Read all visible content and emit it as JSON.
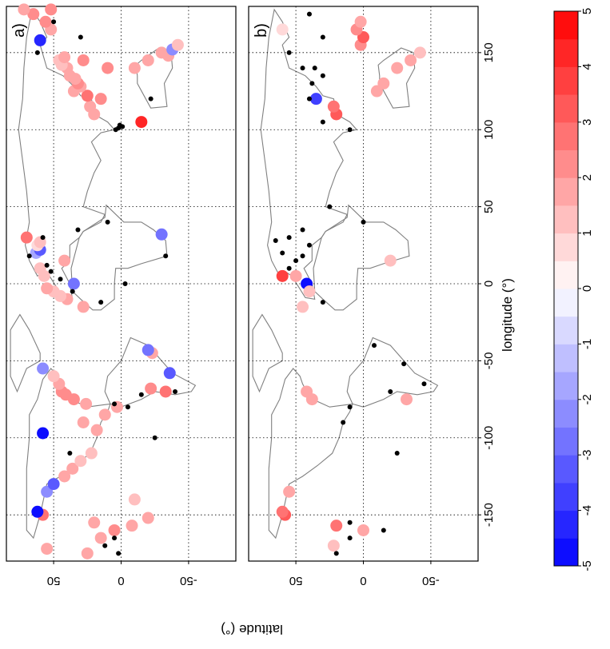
{
  "figure": {
    "xlabel": "longitude (°)",
    "ylabel": "latitude (°)",
    "x_ticks": [
      -150,
      -100,
      -50,
      0,
      50,
      100,
      150
    ],
    "y_ticks": [
      50,
      0,
      -50
    ],
    "colorbar_ticks": [
      -5,
      -4,
      -3,
      -2,
      -1,
      0,
      1,
      2,
      3,
      4,
      5
    ],
    "colors": {
      "frame": "#000000",
      "coast": "#808080",
      "grid": "#000000",
      "neg_max": "#0000ff",
      "pos_max": "#ff0000",
      "zero": "#ffffff",
      "insignificant_marker": "#000000"
    }
  },
  "chart_data": [
    {
      "type": "scatter",
      "panel_label": "a)",
      "xlim": [
        -180,
        180
      ],
      "ylim": [
        -85,
        85
      ],
      "grid": true,
      "color_scale": [
        -5,
        5
      ],
      "points": [
        {
          "lon": -175,
          "lat": 25,
          "v": 1.5
        },
        {
          "lon": -165,
          "lat": 15,
          "v": 1.8
        },
        {
          "lon": -160,
          "lat": 5,
          "v": 2.0
        },
        {
          "lon": -155,
          "lat": 20,
          "v": 1.6
        },
        {
          "lon": -157,
          "lat": -8,
          "v": 1.7
        },
        {
          "lon": -152,
          "lat": -20,
          "v": 1.9
        },
        {
          "lon": -150,
          "lat": 58,
          "v": 2.5
        },
        {
          "lon": -148,
          "lat": 62,
          "v": -4.5
        },
        {
          "lon": -140,
          "lat": -10,
          "v": 1.4
        },
        {
          "lon": -135,
          "lat": 55,
          "v": -2.0
        },
        {
          "lon": -130,
          "lat": 50,
          "v": -3.0
        },
        {
          "lon": -125,
          "lat": 42,
          "v": 1.5
        },
        {
          "lon": -120,
          "lat": 36,
          "v": 1.8
        },
        {
          "lon": -115,
          "lat": 30,
          "v": 1.2
        },
        {
          "lon": -110,
          "lat": 22,
          "v": 1.4
        },
        {
          "lon": -97,
          "lat": 58,
          "v": -4.5
        },
        {
          "lon": -95,
          "lat": 18,
          "v": 1.5
        },
        {
          "lon": -90,
          "lat": 28,
          "v": 1.8
        },
        {
          "lon": -85,
          "lat": 12,
          "v": 1.6
        },
        {
          "lon": -80,
          "lat": 3,
          "v": 1.5
        },
        {
          "lon": -78,
          "lat": 26,
          "v": 1.9
        },
        {
          "lon": -75,
          "lat": 35,
          "v": 2.0
        },
        {
          "lon": -72,
          "lat": 41,
          "v": 2.3
        },
        {
          "lon": -70,
          "lat": 44,
          "v": 2.0
        },
        {
          "lon": -70,
          "lat": -33,
          "v": 2.5
        },
        {
          "lon": -68,
          "lat": -22,
          "v": 2.0
        },
        {
          "lon": -65,
          "lat": 46,
          "v": 1.5
        },
        {
          "lon": -60,
          "lat": 50,
          "v": 1.2
        },
        {
          "lon": -58,
          "lat": -36,
          "v": -3.0
        },
        {
          "lon": -55,
          "lat": 58,
          "v": -2.0
        },
        {
          "lon": -45,
          "lat": -23,
          "v": 1.7
        },
        {
          "lon": -43,
          "lat": -20,
          "v": -2.5
        },
        {
          "lon": -15,
          "lat": 28,
          "v": 1.5
        },
        {
          "lon": -10,
          "lat": 40,
          "v": 1.6
        },
        {
          "lon": -8,
          "lat": 45,
          "v": 1.4
        },
        {
          "lon": -5,
          "lat": 50,
          "v": 1.3
        },
        {
          "lon": -3,
          "lat": 55,
          "v": 1.5
        },
        {
          "lon": 0,
          "lat": 35,
          "v": -2.5
        },
        {
          "lon": 5,
          "lat": 57,
          "v": 1.2
        },
        {
          "lon": 10,
          "lat": 60,
          "v": 1.4
        },
        {
          "lon": 15,
          "lat": 42,
          "v": 1.5
        },
        {
          "lon": 20,
          "lat": 63,
          "v": -1.5
        },
        {
          "lon": 22,
          "lat": 60,
          "v": -3.0
        },
        {
          "lon": 25,
          "lat": 62,
          "v": 0.8
        },
        {
          "lon": 27,
          "lat": 60,
          "v": 1.4
        },
        {
          "lon": 30,
          "lat": 70,
          "v": 2.6
        },
        {
          "lon": 32,
          "lat": -30,
          "v": -2.5
        },
        {
          "lon": 105,
          "lat": -15,
          "v": 4.0
        },
        {
          "lon": 110,
          "lat": 20,
          "v": 1.5
        },
        {
          "lon": 115,
          "lat": 23,
          "v": 1.6
        },
        {
          "lon": 120,
          "lat": 15,
          "v": 2.0
        },
        {
          "lon": 122,
          "lat": 25,
          "v": 2.5
        },
        {
          "lon": 125,
          "lat": 35,
          "v": 1.7
        },
        {
          "lon": 128,
          "lat": 30,
          "v": 1.5
        },
        {
          "lon": 130,
          "lat": 32,
          "v": 2.0
        },
        {
          "lon": 133,
          "lat": 34,
          "v": 1.8
        },
        {
          "lon": 135,
          "lat": 38,
          "v": 1.5
        },
        {
          "lon": 140,
          "lat": 40,
          "v": 1.6
        },
        {
          "lon": 142,
          "lat": 44,
          "v": 1.3
        },
        {
          "lon": 145,
          "lat": 46,
          "v": 1.2
        },
        {
          "lon": 140,
          "lat": -10,
          "v": 1.8
        },
        {
          "lon": 145,
          "lat": -20,
          "v": 1.5
        },
        {
          "lon": 148,
          "lat": -35,
          "v": 1.6
        },
        {
          "lon": 150,
          "lat": -30,
          "v": 1.5
        },
        {
          "lon": 152,
          "lat": -38,
          "v": -2.0
        },
        {
          "lon": 155,
          "lat": -42,
          "v": 1.4
        },
        {
          "lon": 140,
          "lat": 10,
          "v": 2.2
        },
        {
          "lon": 145,
          "lat": 28,
          "v": 2.0
        },
        {
          "lon": 147,
          "lat": 42,
          "v": 1.7
        },
        {
          "lon": 158,
          "lat": 60,
          "v": -4.0
        },
        {
          "lon": 165,
          "lat": 52,
          "v": 1.9
        },
        {
          "lon": 170,
          "lat": 56,
          "v": 2.1
        },
        {
          "lon": 175,
          "lat": 65,
          "v": 2.4
        },
        {
          "lon": 178,
          "lat": 72,
          "v": 1.5
        },
        {
          "lon": -172,
          "lat": 55,
          "v": 1.6
        },
        {
          "lon": 178,
          "lat": 52,
          "v": 2.3
        },
        {
          "lon": -165,
          "lat": 5,
          "v": null
        },
        {
          "lon": -170,
          "lat": 12,
          "v": null
        },
        {
          "lon": -175,
          "lat": 2,
          "v": null
        },
        {
          "lon": -110,
          "lat": 38,
          "v": null
        },
        {
          "lon": -100,
          "lat": -25,
          "v": null
        },
        {
          "lon": -80,
          "lat": -5,
          "v": null
        },
        {
          "lon": -78,
          "lat": 5,
          "v": null
        },
        {
          "lon": -72,
          "lat": -15,
          "v": null
        },
        {
          "lon": -70,
          "lat": -40,
          "v": null
        },
        {
          "lon": -12,
          "lat": 15,
          "v": null
        },
        {
          "lon": -5,
          "lat": 36,
          "v": null
        },
        {
          "lon": 3,
          "lat": 45,
          "v": null
        },
        {
          "lon": 8,
          "lat": 52,
          "v": null
        },
        {
          "lon": 12,
          "lat": 55,
          "v": null
        },
        {
          "lon": 18,
          "lat": 68,
          "v": null
        },
        {
          "lon": 30,
          "lat": 58,
          "v": null
        },
        {
          "lon": 35,
          "lat": 32,
          "v": null
        },
        {
          "lon": 40,
          "lat": 10,
          "v": null
        },
        {
          "lon": 0,
          "lat": -3,
          "v": null
        },
        {
          "lon": 18,
          "lat": -33,
          "v": null
        },
        {
          "lon": 120,
          "lat": -22,
          "v": null
        },
        {
          "lon": 150,
          "lat": 62,
          "v": null
        },
        {
          "lon": 160,
          "lat": 30,
          "v": null
        },
        {
          "lon": 170,
          "lat": 50,
          "v": null
        },
        {
          "lon": 101,
          "lat": 2,
          "v": null
        },
        {
          "lon": 100,
          "lat": 4,
          "v": null
        },
        {
          "lon": 103,
          "lat": 1,
          "v": null
        },
        {
          "lon": 102,
          "lat": -1,
          "v": null
        }
      ]
    },
    {
      "type": "scatter",
      "panel_label": "b)",
      "xlim": [
        -180,
        180
      ],
      "ylim": [
        -85,
        85
      ],
      "grid": true,
      "color_scale": [
        -5,
        5
      ],
      "points": [
        {
          "lon": -170,
          "lat": 22,
          "v": 1.4
        },
        {
          "lon": -160,
          "lat": 0,
          "v": 1.6
        },
        {
          "lon": -157,
          "lat": 20,
          "v": 2.5
        },
        {
          "lon": -150,
          "lat": 58,
          "v": 3.0
        },
        {
          "lon": -148,
          "lat": 60,
          "v": 2.5
        },
        {
          "lon": -135,
          "lat": 55,
          "v": 1.5
        },
        {
          "lon": -75,
          "lat": 38,
          "v": 1.6
        },
        {
          "lon": -70,
          "lat": 42,
          "v": 1.8
        },
        {
          "lon": -75,
          "lat": -32,
          "v": 1.5
        },
        {
          "lon": -15,
          "lat": 45,
          "v": 1.4
        },
        {
          "lon": 0,
          "lat": 42,
          "v": -4.5
        },
        {
          "lon": -5,
          "lat": 40,
          "v": 1.3
        },
        {
          "lon": 5,
          "lat": 60,
          "v": 3.5
        },
        {
          "lon": 5,
          "lat": 50,
          "v": 1.5
        },
        {
          "lon": 15,
          "lat": -20,
          "v": 1.2
        },
        {
          "lon": 110,
          "lat": 20,
          "v": 3.0
        },
        {
          "lon": 115,
          "lat": 22,
          "v": 2.5
        },
        {
          "lon": 120,
          "lat": 35,
          "v": -3.5
        },
        {
          "lon": 125,
          "lat": -10,
          "v": 1.6
        },
        {
          "lon": 130,
          "lat": -15,
          "v": 1.5
        },
        {
          "lon": 140,
          "lat": -25,
          "v": 1.7
        },
        {
          "lon": 145,
          "lat": -35,
          "v": 1.5
        },
        {
          "lon": 150,
          "lat": -42,
          "v": 1.3
        },
        {
          "lon": 155,
          "lat": 2,
          "v": 2.3
        },
        {
          "lon": 160,
          "lat": 0,
          "v": 3.0
        },
        {
          "lon": 165,
          "lat": 5,
          "v": 2.0
        },
        {
          "lon": 170,
          "lat": 2,
          "v": 1.5
        },
        {
          "lon": 165,
          "lat": 60,
          "v": 0.8
        },
        {
          "lon": -165,
          "lat": 10,
          "v": null
        },
        {
          "lon": -175,
          "lat": 20,
          "v": null
        },
        {
          "lon": -160,
          "lat": -15,
          "v": null
        },
        {
          "lon": -155,
          "lat": 10,
          "v": null
        },
        {
          "lon": -110,
          "lat": -25,
          "v": null
        },
        {
          "lon": -90,
          "lat": 15,
          "v": null
        },
        {
          "lon": -80,
          "lat": 10,
          "v": null
        },
        {
          "lon": -70,
          "lat": -20,
          "v": null
        },
        {
          "lon": -65,
          "lat": -45,
          "v": null
        },
        {
          "lon": -52,
          "lat": -30,
          "v": null
        },
        {
          "lon": -40,
          "lat": -8,
          "v": null
        },
        {
          "lon": -12,
          "lat": 30,
          "v": null
        },
        {
          "lon": 10,
          "lat": 55,
          "v": null
        },
        {
          "lon": 15,
          "lat": 50,
          "v": null
        },
        {
          "lon": 18,
          "lat": 45,
          "v": null
        },
        {
          "lon": 20,
          "lat": 60,
          "v": null
        },
        {
          "lon": 25,
          "lat": 40,
          "v": null
        },
        {
          "lon": 30,
          "lat": 55,
          "v": null
        },
        {
          "lon": 28,
          "lat": 65,
          "v": null
        },
        {
          "lon": 35,
          "lat": 45,
          "v": null
        },
        {
          "lon": 40,
          "lat": 0,
          "v": null
        },
        {
          "lon": 50,
          "lat": 25,
          "v": null
        },
        {
          "lon": 100,
          "lat": 10,
          "v": null
        },
        {
          "lon": 105,
          "lat": 30,
          "v": null
        },
        {
          "lon": 120,
          "lat": 40,
          "v": null
        },
        {
          "lon": 130,
          "lat": 38,
          "v": null
        },
        {
          "lon": 135,
          "lat": 30,
          "v": null
        },
        {
          "lon": 140,
          "lat": 36,
          "v": null
        },
        {
          "lon": 140,
          "lat": 45,
          "v": null
        },
        {
          "lon": 150,
          "lat": 55,
          "v": null
        },
        {
          "lon": 175,
          "lat": 40,
          "v": null
        },
        {
          "lon": 160,
          "lat": 30,
          "v": null
        }
      ]
    }
  ]
}
